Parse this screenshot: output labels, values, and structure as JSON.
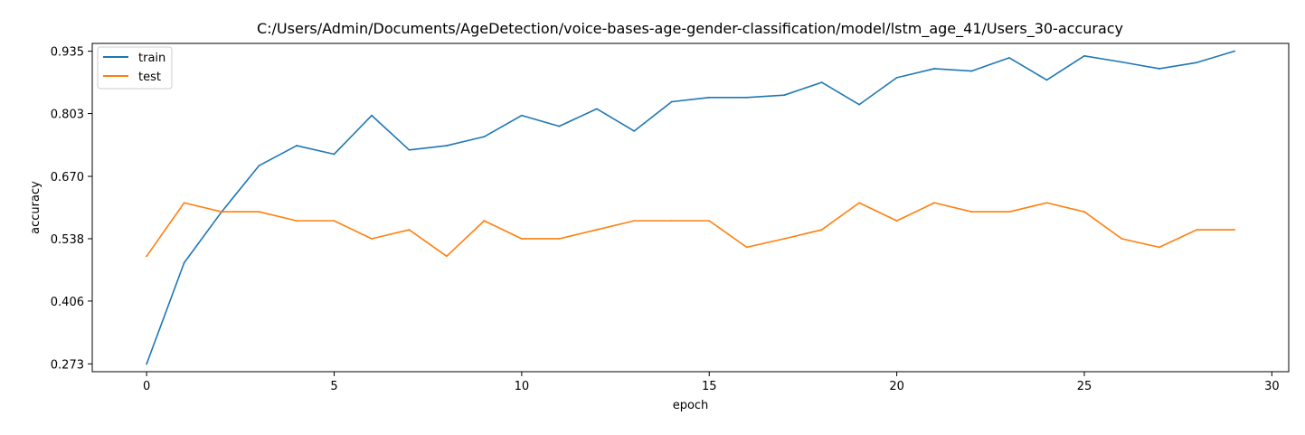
{
  "chart_data": {
    "type": "line",
    "title": "C:/Users/Admin/Documents/AgeDetection/voice-bases-age-gender-classification/model/lstm_age_41/Users_30-accuracy",
    "xlabel": "epoch",
    "ylabel": "accuracy",
    "xlim": [
      -1.45,
      30.45
    ],
    "ylim": [
      0.2565,
      0.9515
    ],
    "x_ticks": [
      0,
      5,
      10,
      15,
      20,
      25,
      30
    ],
    "y_ticks": [
      0.273,
      0.406,
      0.538,
      0.67,
      0.803,
      0.935
    ],
    "y_tick_labels": [
      "0.273",
      "0.406",
      "0.538",
      "0.670",
      "0.803",
      "0.935"
    ],
    "legend_position": "top-left",
    "grid": false,
    "x": [
      0,
      1,
      2,
      3,
      4,
      5,
      6,
      7,
      8,
      9,
      10,
      11,
      12,
      13,
      14,
      15,
      16,
      17,
      18,
      19,
      20,
      21,
      22,
      23,
      24,
      25,
      26,
      27,
      28,
      29
    ],
    "series": [
      {
        "name": "train",
        "color": "#1f77b4",
        "values": [
          0.273,
          0.487,
          0.595,
          0.693,
          0.735,
          0.717,
          0.799,
          0.726,
          0.735,
          0.754,
          0.799,
          0.776,
          0.813,
          0.766,
          0.828,
          0.837,
          0.837,
          0.842,
          0.869,
          0.822,
          0.879,
          0.898,
          0.893,
          0.921,
          0.874,
          0.925,
          0.912,
          0.898,
          0.911,
          0.935
        ]
      },
      {
        "name": "test",
        "color": "#ff7f0e",
        "values": [
          0.501,
          0.614,
          0.595,
          0.595,
          0.576,
          0.576,
          0.538,
          0.557,
          0.501,
          0.576,
          0.538,
          0.538,
          0.557,
          0.576,
          0.576,
          0.576,
          0.52,
          0.538,
          0.557,
          0.614,
          0.576,
          0.614,
          0.595,
          0.595,
          0.614,
          0.595,
          0.538,
          0.52,
          0.557,
          0.557
        ]
      }
    ]
  }
}
